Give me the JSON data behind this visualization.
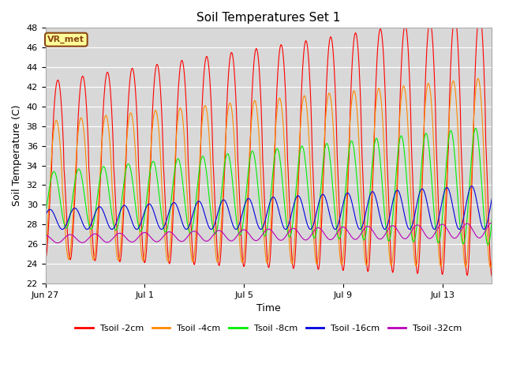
{
  "title": "Soil Temperatures Set 1",
  "xlabel": "Time",
  "ylabel": "Soil Temperature (C)",
  "ylim": [
    22,
    48
  ],
  "yticks": [
    22,
    24,
    26,
    28,
    30,
    32,
    34,
    36,
    38,
    40,
    42,
    44,
    46,
    48
  ],
  "plot_bg_color": "#d8d8d8",
  "fig_bg_color": "#ffffff",
  "legend_label": "VR_met",
  "legend_bg": "#ffff99",
  "legend_border": "#8B4513",
  "series_colors": {
    "Tsoil -2cm": "#ff0000",
    "Tsoil -4cm": "#ff8800",
    "Tsoil -8cm": "#00ee00",
    "Tsoil -16cm": "#0000dd",
    "Tsoil -32cm": "#bb00bb"
  },
  "xtick_labels": [
    "Jun 27",
    "Jul 1",
    "Jul 5",
    "Jul 9",
    "Jul 13"
  ],
  "xtick_positions": [
    0,
    4,
    8,
    12,
    16
  ],
  "num_days": 18,
  "samples_per_day": 48,
  "figsize": [
    6.4,
    4.8
  ],
  "dpi": 100
}
